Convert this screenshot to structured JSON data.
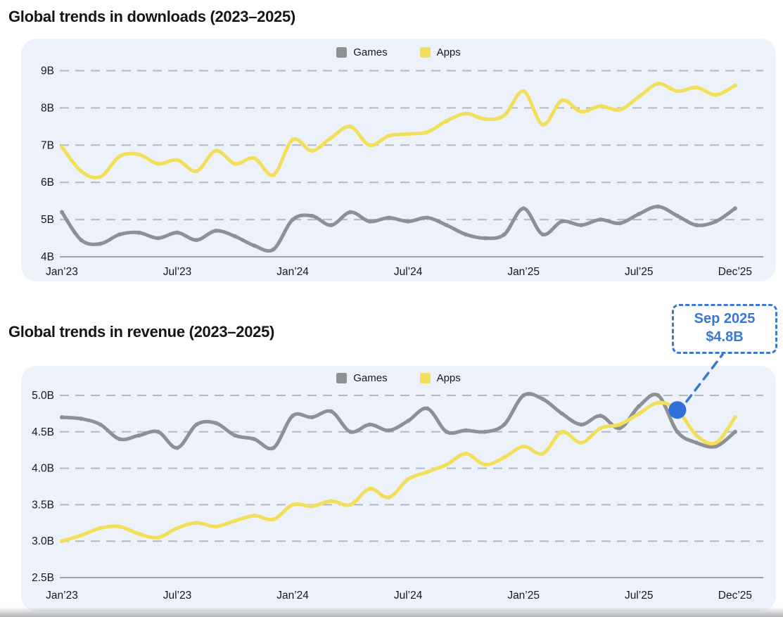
{
  "page": {
    "background": "#ffffff",
    "panel_background": "#edf2fa"
  },
  "chart_data": [
    {
      "type": "line",
      "title": "Global trends in downloads (2023–2025)",
      "legend_position": "top-center",
      "x_unit": "monthly, Jan 2023 – Dec 2025 (36 points)",
      "x_tick_labels": [
        "Jan’23",
        "Jul’23",
        "Jan’24",
        "Jul’24",
        "Jan’25",
        "Jul’25",
        "Dec’25"
      ],
      "x_tick_month_indices": [
        0,
        6,
        12,
        18,
        24,
        30,
        35
      ],
      "y_tick_labels": [
        "9B",
        "8B",
        "7B",
        "6B",
        "5B",
        "4B"
      ],
      "y_tick_values": [
        9,
        8,
        7,
        6,
        5,
        4
      ],
      "ylim": [
        4,
        9
      ],
      "grid": "dashed horizontal gridlines, solid bottom axis",
      "series": [
        {
          "name": "Games",
          "color": "#8f9094",
          "values": [
            5.2,
            4.45,
            4.35,
            4.6,
            4.65,
            4.5,
            4.65,
            4.45,
            4.7,
            4.55,
            4.3,
            4.2,
            5.0,
            5.1,
            4.85,
            5.2,
            4.95,
            5.05,
            4.95,
            5.05,
            4.85,
            4.6,
            4.5,
            4.6,
            5.3,
            4.6,
            4.95,
            4.85,
            5.0,
            4.9,
            5.15,
            5.35,
            5.1,
            4.85,
            4.95,
            5.3
          ]
        },
        {
          "name": "Apps",
          "color": "#f3de5b",
          "values": [
            6.95,
            6.3,
            6.15,
            6.7,
            6.75,
            6.5,
            6.6,
            6.3,
            6.85,
            6.5,
            6.65,
            6.2,
            7.15,
            6.85,
            7.2,
            7.5,
            7.0,
            7.25,
            7.3,
            7.35,
            7.65,
            7.85,
            7.7,
            7.8,
            8.45,
            7.55,
            8.2,
            7.9,
            8.05,
            7.95,
            8.3,
            8.65,
            8.45,
            8.55,
            8.35,
            8.6
          ]
        }
      ]
    },
    {
      "type": "line",
      "title": "Global trends in revenue (2023–2025)",
      "legend_position": "top-center",
      "x_unit": "monthly, Jan 2023 – Dec 2025 (36 points)",
      "x_tick_labels": [
        "Jan’23",
        "Jul’23",
        "Jan’24",
        "Jul’24",
        "Jan’25",
        "Jul’25",
        "Dec’25"
      ],
      "x_tick_month_indices": [
        0,
        6,
        12,
        18,
        24,
        30,
        35
      ],
      "y_tick_labels": [
        "5.0B",
        "4.5B",
        "4.0B",
        "3.5B",
        "3.0B",
        "2.5B"
      ],
      "y_tick_values": [
        5,
        4.5,
        4,
        3.5,
        3,
        2.5
      ],
      "ylim": [
        2.5,
        5
      ],
      "grid": "dashed horizontal gridlines, solid bottom axis",
      "series": [
        {
          "name": "Games",
          "color": "#8f9094",
          "values": [
            4.7,
            4.68,
            4.6,
            4.4,
            4.45,
            4.5,
            4.28,
            4.6,
            4.62,
            4.45,
            4.4,
            4.28,
            4.72,
            4.7,
            4.78,
            4.5,
            4.6,
            4.52,
            4.65,
            4.82,
            4.5,
            4.52,
            4.5,
            4.6,
            5.0,
            4.95,
            4.75,
            4.6,
            4.72,
            4.55,
            4.85,
            5.0,
            4.5,
            4.35,
            4.3,
            4.5
          ]
        },
        {
          "name": "Apps",
          "color": "#f3de5b",
          "values": [
            3.0,
            3.08,
            3.18,
            3.2,
            3.1,
            3.05,
            3.18,
            3.25,
            3.2,
            3.28,
            3.35,
            3.3,
            3.5,
            3.48,
            3.55,
            3.5,
            3.72,
            3.6,
            3.85,
            3.95,
            4.05,
            4.2,
            4.05,
            4.15,
            4.3,
            4.2,
            4.5,
            4.35,
            4.55,
            4.6,
            4.75,
            4.9,
            4.8,
            4.45,
            4.35,
            4.7
          ]
        }
      ],
      "annotation": {
        "text_line1": "Sep 2025",
        "text_line2": "$4.8B",
        "series": "Apps",
        "month_index": 32,
        "value": 4.8,
        "accent_color": "#3a76d8",
        "marker_color": "#2e6fd8"
      }
    }
  ]
}
